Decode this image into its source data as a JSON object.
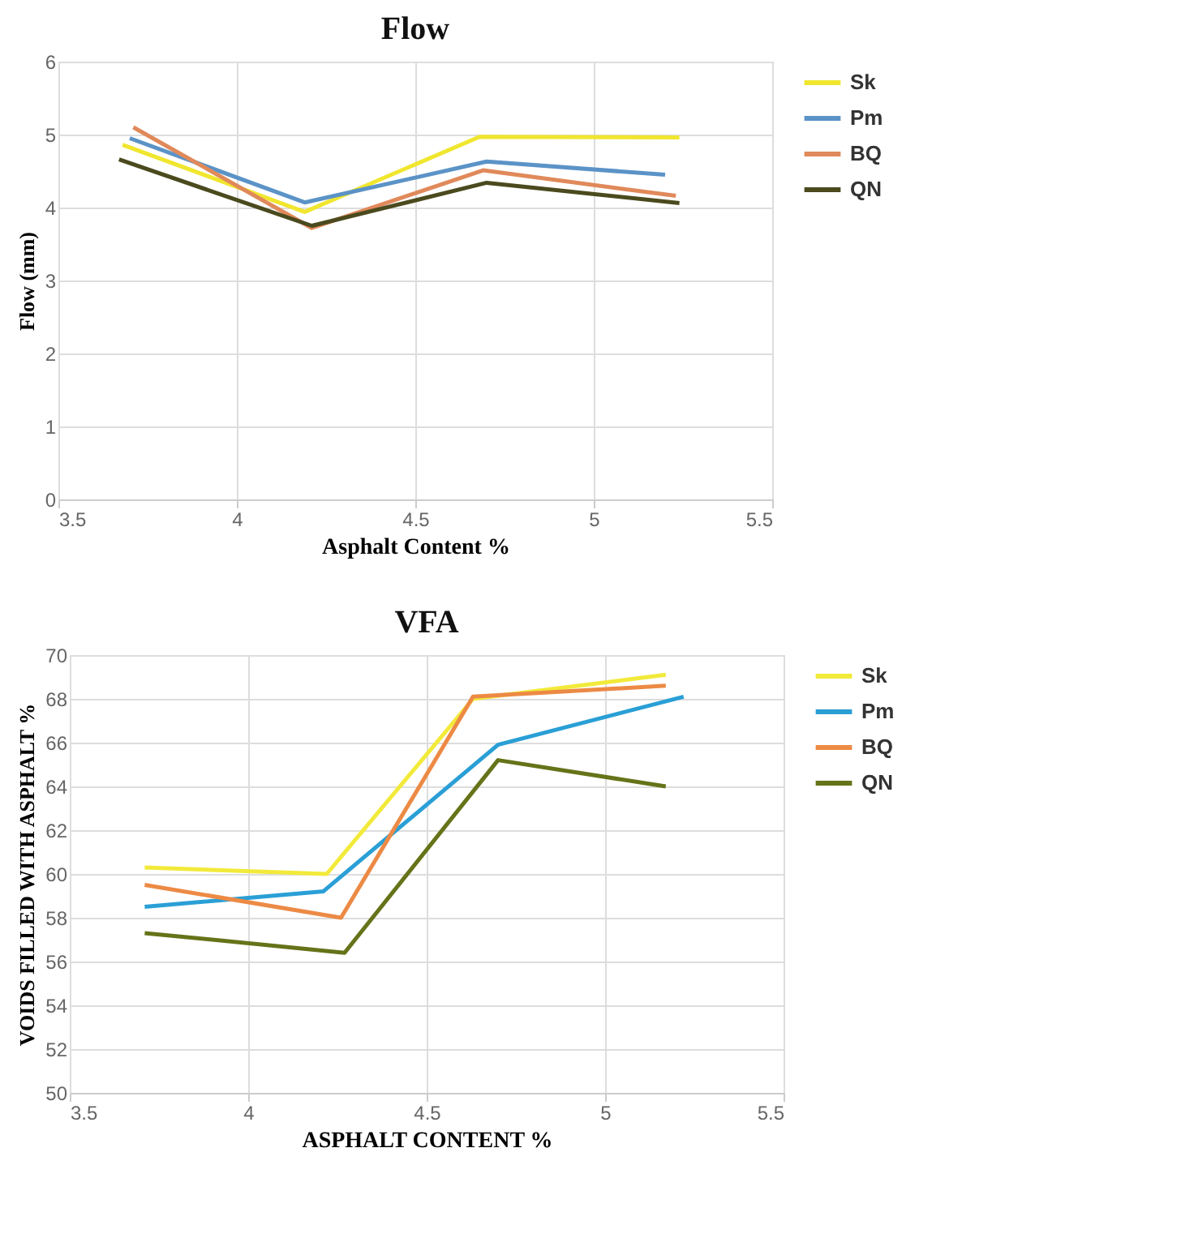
{
  "chart_data": [
    {
      "type": "line",
      "title": "Flow",
      "xlabel": "Asphalt  Content  %",
      "ylabel": "Flow (mm)",
      "xlim": [
        3.5,
        5.5
      ],
      "xticks": [
        3.5,
        4,
        4.5,
        5,
        5.5
      ],
      "ylim": [
        0,
        6
      ],
      "yticks": [
        0,
        1,
        2,
        3,
        4,
        5,
        6
      ],
      "grid": true,
      "legend": "right",
      "series": [
        {
          "name": "Sk",
          "color": "#f0e62e",
          "x": [
            3.68,
            4.19,
            4.68,
            5.24
          ],
          "values": [
            4.86,
            3.94,
            4.97,
            4.96
          ]
        },
        {
          "name": "Pm",
          "color": "#5b93c7",
          "x": [
            3.7,
            4.19,
            4.7,
            5.2
          ],
          "values": [
            4.95,
            4.07,
            4.63,
            4.45
          ]
        },
        {
          "name": "BQ",
          "color": "#e0895a",
          "x": [
            3.71,
            4.21,
            4.69,
            5.23
          ],
          "values": [
            5.1,
            3.72,
            4.51,
            4.16
          ]
        },
        {
          "name": "QN",
          "color": "#4a4a1e",
          "x": [
            3.67,
            4.21,
            4.7,
            5.24
          ],
          "values": [
            4.66,
            3.75,
            4.34,
            4.06
          ]
        }
      ]
    },
    {
      "type": "line",
      "title": "VFA",
      "xlabel": "ASPHALT  CONTENT  %",
      "ylabel": "VOIDS FILLED WITH ASPHALT %",
      "xlim": [
        3.5,
        5.5
      ],
      "xticks": [
        3.5,
        4,
        4.5,
        5,
        5.5
      ],
      "ylim": [
        50,
        70
      ],
      "yticks": [
        50,
        52,
        54,
        56,
        58,
        60,
        62,
        64,
        66,
        68,
        70
      ],
      "grid": true,
      "legend": "right",
      "series": [
        {
          "name": "Sk",
          "color": "#f2ea3a",
          "x": [
            3.71,
            4.22,
            4.63,
            5.17
          ],
          "values": [
            60.3,
            60.0,
            68.0,
            69.1
          ]
        },
        {
          "name": "Pm",
          "color": "#2a9fd6",
          "x": [
            3.71,
            4.21,
            4.7,
            5.22
          ],
          "values": [
            58.5,
            59.2,
            65.9,
            68.1
          ]
        },
        {
          "name": "BQ",
          "color": "#ec8a45",
          "x": [
            3.71,
            4.26,
            4.63,
            5.17
          ],
          "values": [
            59.5,
            58.0,
            68.1,
            68.6
          ]
        },
        {
          "name": "QN",
          "color": "#667319",
          "x": [
            3.71,
            4.27,
            4.7,
            5.17
          ],
          "values": [
            57.3,
            56.4,
            65.2,
            64.0
          ]
        }
      ]
    }
  ]
}
